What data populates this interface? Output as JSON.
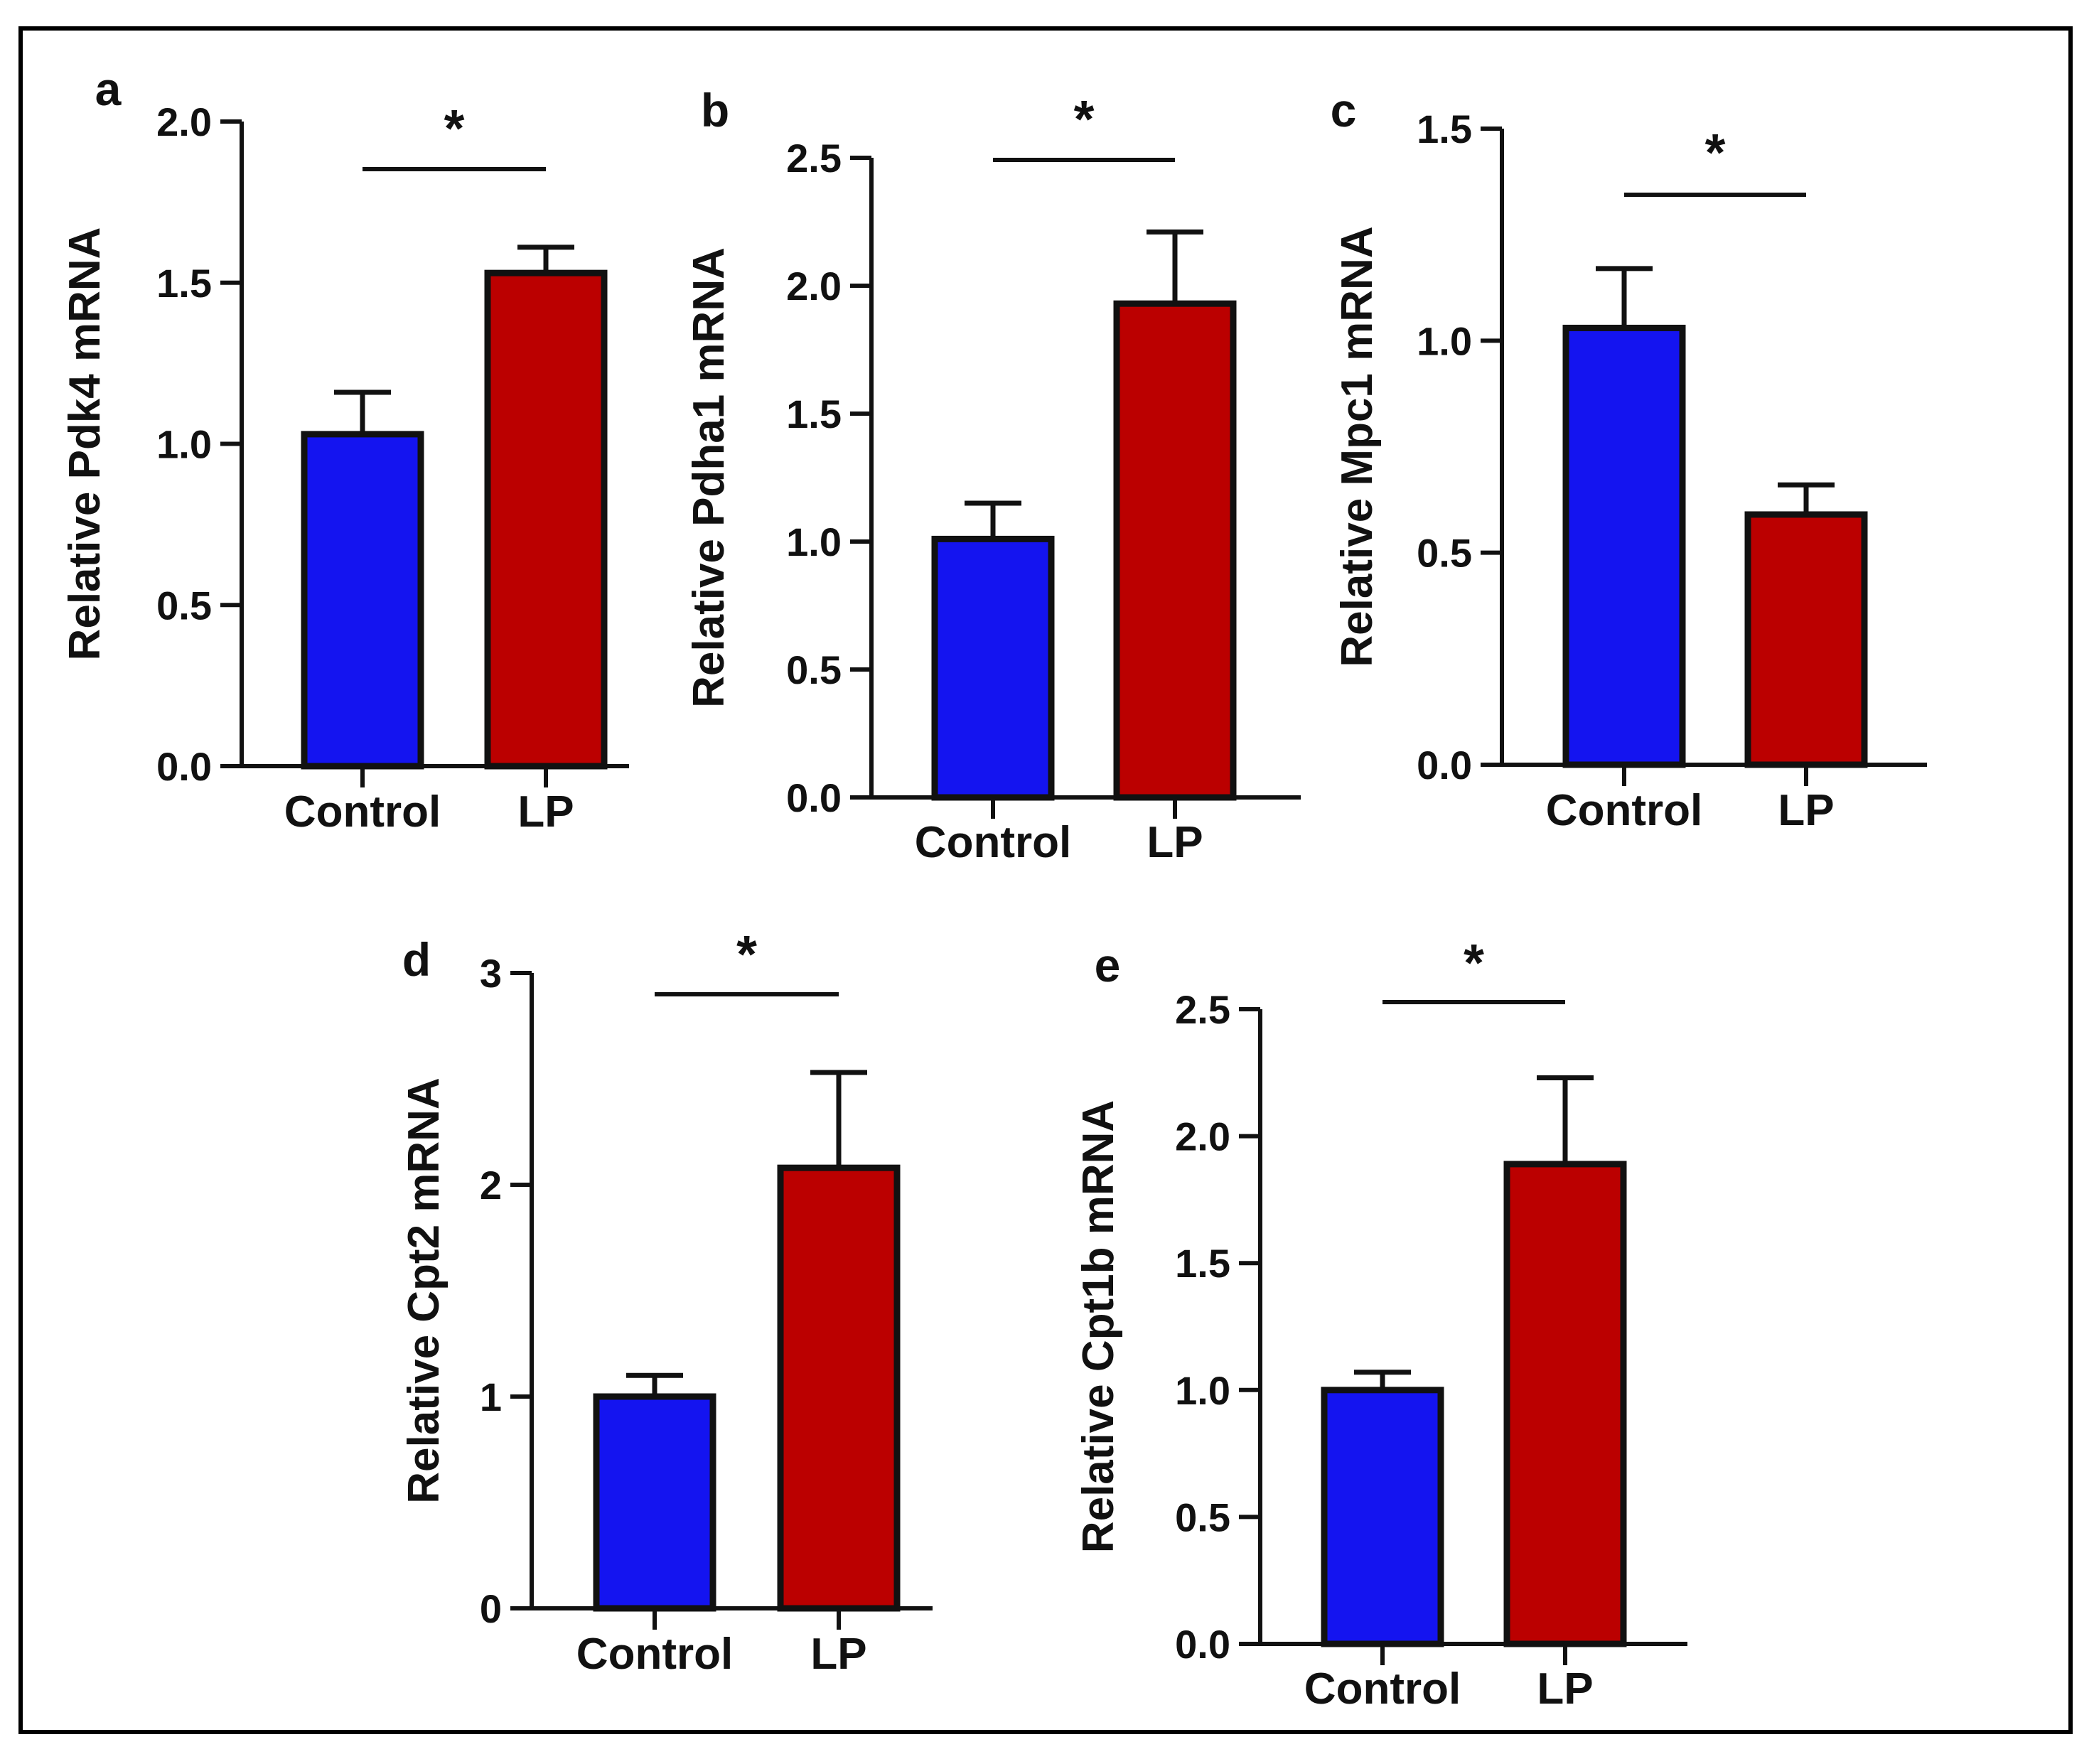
{
  "colors": {
    "control": "#1414f0",
    "lp": "#bb0000",
    "stroke": "#111111"
  },
  "chart_data": [
    {
      "type": "bar",
      "panel_label": "a",
      "categories": [
        "Control",
        "LP"
      ],
      "values": [
        1.03,
        1.53
      ],
      "errors": [
        0.13,
        0.08
      ],
      "ylabel": "Relative Pdk4 mRNA",
      "ylim": [
        0,
        2.0
      ],
      "yticks": [
        0.0,
        0.5,
        1.0,
        1.5,
        2.0
      ],
      "ytick_labels": [
        "0.0",
        "0.5",
        "1.0",
        "1.5",
        "2.0"
      ],
      "significance": "*"
    },
    {
      "type": "bar",
      "panel_label": "b",
      "categories": [
        "Control",
        "LP"
      ],
      "values": [
        1.01,
        1.93
      ],
      "errors": [
        0.14,
        0.28
      ],
      "ylabel": "Relative Pdha1 mRNA",
      "ylim": [
        0,
        2.5
      ],
      "yticks": [
        0.0,
        0.5,
        1.0,
        1.5,
        2.0,
        2.5
      ],
      "ytick_labels": [
        "0.0",
        "0.5",
        "1.0",
        "1.5",
        "2.0",
        "2.5"
      ],
      "significance": "*"
    },
    {
      "type": "bar",
      "panel_label": "c",
      "categories": [
        "Control",
        "LP"
      ],
      "values": [
        1.03,
        0.59
      ],
      "errors": [
        0.14,
        0.07
      ],
      "ylabel": "Relative Mpc1 mRNA",
      "ylim": [
        0,
        1.5
      ],
      "yticks": [
        0.0,
        0.5,
        1.0,
        1.5
      ],
      "ytick_labels": [
        "0.0",
        "0.5",
        "1.0",
        "1.5"
      ],
      "significance": "*"
    },
    {
      "type": "bar",
      "panel_label": "d",
      "categories": [
        "Control",
        "LP"
      ],
      "values": [
        1.0,
        2.08
      ],
      "errors": [
        0.1,
        0.45
      ],
      "ylabel": "Relative Cpt2 mRNA",
      "ylim": [
        0,
        3
      ],
      "yticks": [
        0,
        1,
        2,
        3
      ],
      "ytick_labels": [
        "0",
        "1",
        "2",
        "3"
      ],
      "significance": "*"
    },
    {
      "type": "bar",
      "panel_label": "e",
      "categories": [
        "Control",
        "LP"
      ],
      "values": [
        1.0,
        1.89
      ],
      "errors": [
        0.07,
        0.34
      ],
      "ylabel": "Relative Cpt1b mRNA",
      "ylim": [
        0,
        2.5
      ],
      "yticks": [
        0.0,
        0.5,
        1.0,
        1.5,
        2.0,
        2.5
      ],
      "ytick_labels": [
        "0.0",
        "0.5",
        "1.0",
        "1.5",
        "2.0",
        "2.5"
      ],
      "significance": "*"
    }
  ]
}
